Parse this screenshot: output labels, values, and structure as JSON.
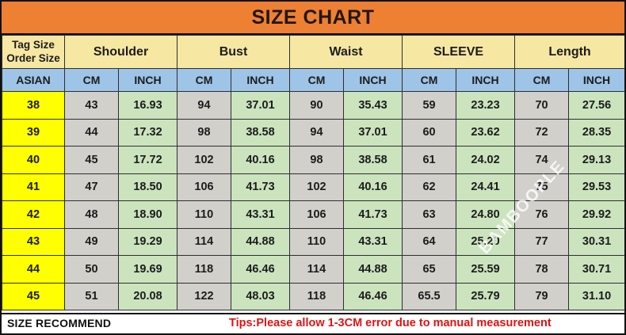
{
  "title": "SIZE CHART",
  "header": {
    "size_label_line1": "Tag Size",
    "size_label_line2": "Order Size",
    "region": "ASIAN",
    "groups": [
      "Shoulder",
      "Bust",
      "Waist",
      "SLEEVE",
      "Length"
    ],
    "unit_cm": "CM",
    "unit_inch": "INCH"
  },
  "chart_data": {
    "type": "table",
    "title": "SIZE CHART",
    "size_system": "ASIAN",
    "columns": [
      "ASIAN",
      "Shoulder CM",
      "Shoulder INCH",
      "Bust CM",
      "Bust INCH",
      "Waist CM",
      "Waist INCH",
      "SLEEVE CM",
      "SLEEVE INCH",
      "Length CM",
      "Length INCH"
    ],
    "rows": [
      [
        "38",
        "43",
        "16.93",
        "94",
        "37.01",
        "90",
        "35.43",
        "59",
        "23.23",
        "70",
        "27.56"
      ],
      [
        "39",
        "44",
        "17.32",
        "98",
        "38.58",
        "94",
        "37.01",
        "60",
        "23.62",
        "72",
        "28.35"
      ],
      [
        "40",
        "45",
        "17.72",
        "102",
        "40.16",
        "98",
        "38.58",
        "61",
        "24.02",
        "74",
        "29.13"
      ],
      [
        "41",
        "47",
        "18.50",
        "106",
        "41.73",
        "102",
        "40.16",
        "62",
        "24.41",
        "75",
        "29.53"
      ],
      [
        "42",
        "48",
        "18.90",
        "110",
        "43.31",
        "106",
        "41.73",
        "63",
        "24.80",
        "76",
        "29.92"
      ],
      [
        "43",
        "49",
        "19.29",
        "114",
        "44.88",
        "110",
        "43.31",
        "64",
        "25.20",
        "77",
        "30.31"
      ],
      [
        "44",
        "50",
        "19.69",
        "118",
        "46.46",
        "114",
        "44.88",
        "65",
        "25.59",
        "78",
        "30.71"
      ],
      [
        "45",
        "51",
        "20.08",
        "122",
        "48.03",
        "118",
        "46.46",
        "65.5",
        "25.79",
        "79",
        "31.10"
      ]
    ]
  },
  "footer": {
    "left_label": "SIZE RECOMMEND",
    "tips": "Tips:Please allow 1-3CM error due to manual measurement"
  },
  "watermark": "BAMBOOPLE",
  "colors": {
    "title_bg": "#ED8033",
    "group_bg": "#F6E7A3",
    "unit_bg": "#9EC4E8",
    "size_bg": "#FFFF00",
    "cm_bg": "#D2D0CB",
    "inch_bg": "#CBE4BE",
    "tips_red": "#E01212"
  }
}
